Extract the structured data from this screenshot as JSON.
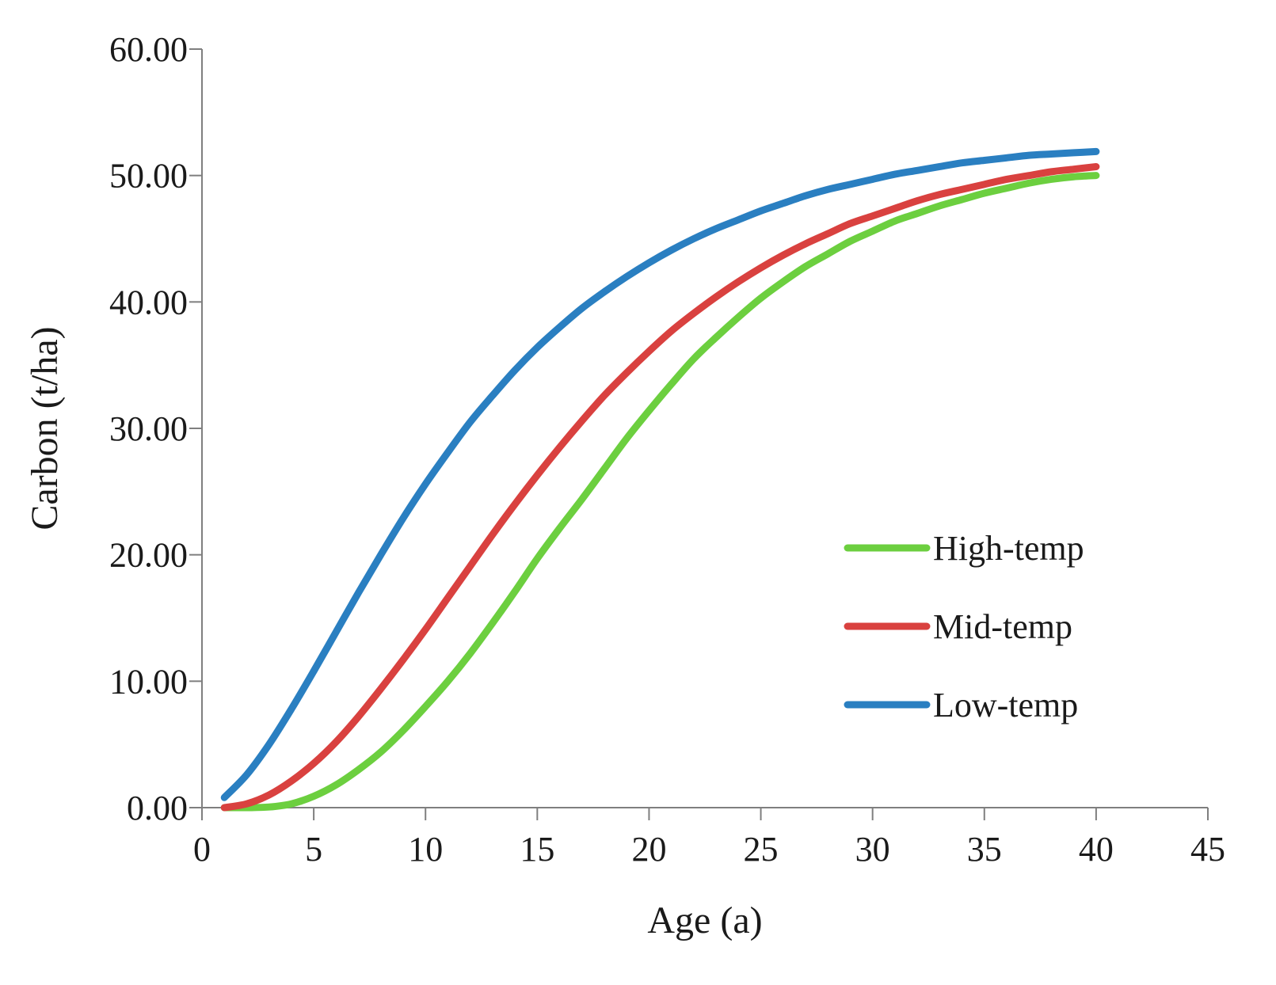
{
  "chart_data": {
    "type": "line",
    "title": "",
    "xlabel": "Age (a)",
    "ylabel": "Carbon (t/ha)",
    "xlim": [
      0,
      45
    ],
    "ylim": [
      0,
      60
    ],
    "grid": false,
    "legend_position": "lower-right",
    "x_ticks": [
      "0",
      "5",
      "10",
      "15",
      "20",
      "25",
      "30",
      "35",
      "40",
      "45"
    ],
    "y_ticks": [
      "0.00",
      "10.00",
      "20.00",
      "30.00",
      "40.00",
      "50.00",
      "60.00"
    ],
    "x": [
      1,
      2,
      3,
      4,
      5,
      6,
      7,
      8,
      9,
      10,
      11,
      12,
      13,
      14,
      15,
      16,
      17,
      18,
      19,
      20,
      21,
      22,
      23,
      24,
      25,
      26,
      27,
      28,
      29,
      30,
      31,
      32,
      33,
      34,
      35,
      36,
      37,
      38,
      39,
      40
    ],
    "series": [
      {
        "name": "High-temp",
        "color": "#6ccf3f",
        "values": [
          0.0,
          0.0,
          0.05,
          0.3,
          0.9,
          1.8,
          3.0,
          4.4,
          6.1,
          8.0,
          10.0,
          12.2,
          14.6,
          17.1,
          19.7,
          22.1,
          24.4,
          26.8,
          29.2,
          31.4,
          33.5,
          35.5,
          37.2,
          38.8,
          40.3,
          41.6,
          42.8,
          43.8,
          44.8,
          45.6,
          46.4,
          47.0,
          47.6,
          48.1,
          48.6,
          49.0,
          49.4,
          49.7,
          49.9,
          50.0
        ]
      },
      {
        "name": "Mid-temp",
        "color": "#d9413f",
        "values": [
          0.0,
          0.3,
          1.0,
          2.1,
          3.5,
          5.2,
          7.2,
          9.4,
          11.7,
          14.1,
          16.6,
          19.1,
          21.6,
          24.0,
          26.3,
          28.5,
          30.6,
          32.6,
          34.4,
          36.1,
          37.7,
          39.1,
          40.4,
          41.6,
          42.7,
          43.7,
          44.6,
          45.4,
          46.2,
          46.8,
          47.4,
          48.0,
          48.5,
          48.9,
          49.3,
          49.7,
          50.0,
          50.3,
          50.5,
          50.7
        ]
      },
      {
        "name": "Low-temp",
        "color": "#2a7fc1",
        "values": [
          0.8,
          2.6,
          5.0,
          7.8,
          10.8,
          13.9,
          17.0,
          20.0,
          22.9,
          25.6,
          28.1,
          30.5,
          32.6,
          34.6,
          36.4,
          38.0,
          39.5,
          40.8,
          42.0,
          43.1,
          44.1,
          45.0,
          45.8,
          46.5,
          47.2,
          47.8,
          48.4,
          48.9,
          49.3,
          49.7,
          50.1,
          50.4,
          50.7,
          51.0,
          51.2,
          51.4,
          51.6,
          51.7,
          51.8,
          51.9
        ]
      }
    ]
  }
}
